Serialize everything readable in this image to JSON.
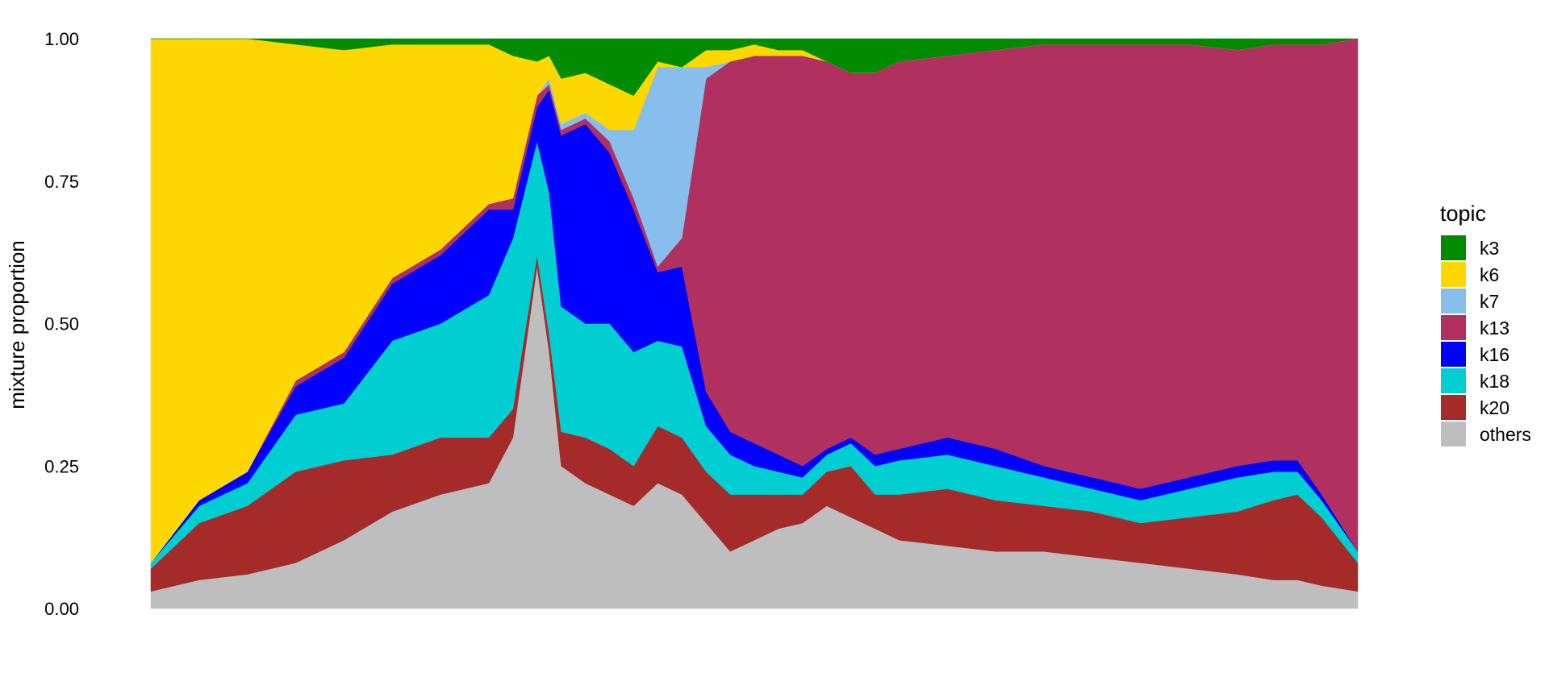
{
  "chart_data": {
    "type": "area",
    "subtype": "stacked-structure-plot",
    "title": "",
    "xlabel": "",
    "ylabel": "mixture proportion",
    "ylim": [
      0,
      1
    ],
    "y_ticks": [
      "0.00",
      "0.25",
      "0.50",
      "0.75",
      "1.00"
    ],
    "x_ticks": [],
    "grid": false,
    "legend_position": "right",
    "legend_title": "topic",
    "x_is_sample_index": true,
    "x": [
      0.0,
      0.04,
      0.08,
      0.12,
      0.16,
      0.2,
      0.24,
      0.28,
      0.3,
      0.32,
      0.33,
      0.34,
      0.36,
      0.38,
      0.4,
      0.42,
      0.44,
      0.46,
      0.48,
      0.5,
      0.52,
      0.54,
      0.56,
      0.58,
      0.6,
      0.62,
      0.66,
      0.7,
      0.74,
      0.78,
      0.82,
      0.86,
      0.9,
      0.93,
      0.95,
      0.97,
      1.0
    ],
    "series": [
      {
        "name": "others",
        "color": "#BEBEBE",
        "values": [
          0.03,
          0.05,
          0.06,
          0.08,
          0.12,
          0.17,
          0.2,
          0.22,
          0.3,
          0.6,
          0.45,
          0.25,
          0.22,
          0.2,
          0.18,
          0.22,
          0.2,
          0.15,
          0.1,
          0.12,
          0.14,
          0.15,
          0.18,
          0.16,
          0.14,
          0.12,
          0.11,
          0.1,
          0.1,
          0.09,
          0.08,
          0.07,
          0.06,
          0.05,
          0.05,
          0.04,
          0.03
        ]
      },
      {
        "name": "k20",
        "color": "#A52A2A",
        "values": [
          0.04,
          0.1,
          0.12,
          0.16,
          0.14,
          0.1,
          0.1,
          0.08,
          0.05,
          0.02,
          0.03,
          0.06,
          0.08,
          0.08,
          0.07,
          0.1,
          0.1,
          0.09,
          0.1,
          0.08,
          0.06,
          0.05,
          0.06,
          0.09,
          0.06,
          0.08,
          0.1,
          0.09,
          0.08,
          0.08,
          0.07,
          0.09,
          0.11,
          0.14,
          0.15,
          0.12,
          0.05
        ]
      },
      {
        "name": "k18",
        "color": "#00CED1",
        "values": [
          0.01,
          0.03,
          0.04,
          0.1,
          0.1,
          0.2,
          0.2,
          0.25,
          0.3,
          0.2,
          0.25,
          0.22,
          0.2,
          0.22,
          0.2,
          0.15,
          0.16,
          0.08,
          0.07,
          0.05,
          0.04,
          0.03,
          0.03,
          0.04,
          0.05,
          0.06,
          0.06,
          0.06,
          0.05,
          0.04,
          0.04,
          0.05,
          0.06,
          0.05,
          0.04,
          0.03,
          0.02
        ]
      },
      {
        "name": "k16",
        "color": "#0000FF",
        "values": [
          0.0,
          0.01,
          0.02,
          0.05,
          0.08,
          0.1,
          0.12,
          0.15,
          0.05,
          0.06,
          0.18,
          0.3,
          0.35,
          0.3,
          0.25,
          0.12,
          0.14,
          0.06,
          0.04,
          0.04,
          0.03,
          0.02,
          0.01,
          0.01,
          0.02,
          0.02,
          0.03,
          0.03,
          0.02,
          0.02,
          0.02,
          0.02,
          0.02,
          0.02,
          0.02,
          0.01,
          0.0
        ]
      },
      {
        "name": "k13",
        "color": "#B03060",
        "values": [
          0.0,
          0.0,
          0.0,
          0.01,
          0.01,
          0.01,
          0.01,
          0.01,
          0.02,
          0.02,
          0.01,
          0.01,
          0.01,
          0.02,
          0.02,
          0.01,
          0.05,
          0.55,
          0.65,
          0.68,
          0.7,
          0.72,
          0.68,
          0.64,
          0.67,
          0.68,
          0.67,
          0.7,
          0.74,
          0.76,
          0.78,
          0.76,
          0.73,
          0.73,
          0.73,
          0.79,
          0.9
        ]
      },
      {
        "name": "k7",
        "color": "#87BEEB",
        "values": [
          0.0,
          0.0,
          0.0,
          0.0,
          0.0,
          0.0,
          0.0,
          0.0,
          0.0,
          0.0,
          0.01,
          0.01,
          0.01,
          0.02,
          0.12,
          0.35,
          0.3,
          0.02,
          0.0,
          0.0,
          0.0,
          0.0,
          0.0,
          0.0,
          0.0,
          0.0,
          0.0,
          0.0,
          0.0,
          0.0,
          0.0,
          0.0,
          0.0,
          0.0,
          0.0,
          0.0,
          0.0
        ]
      },
      {
        "name": "k6",
        "color": "#FFD700",
        "values": [
          0.92,
          0.81,
          0.76,
          0.59,
          0.53,
          0.41,
          0.36,
          0.28,
          0.25,
          0.06,
          0.04,
          0.08,
          0.07,
          0.08,
          0.06,
          0.01,
          0.0,
          0.03,
          0.02,
          0.02,
          0.01,
          0.01,
          0.0,
          0.0,
          0.0,
          0.0,
          0.0,
          0.0,
          0.0,
          0.0,
          0.0,
          0.0,
          0.0,
          0.0,
          0.0,
          0.0,
          0.0
        ]
      },
      {
        "name": "k3",
        "color": "#008B00",
        "values": [
          0.0,
          0.0,
          0.0,
          0.01,
          0.02,
          0.01,
          0.01,
          0.01,
          0.03,
          0.04,
          0.03,
          0.07,
          0.06,
          0.08,
          0.1,
          0.04,
          0.05,
          0.02,
          0.02,
          0.01,
          0.02,
          0.02,
          0.04,
          0.06,
          0.06,
          0.04,
          0.03,
          0.02,
          0.01,
          0.01,
          0.01,
          0.01,
          0.02,
          0.01,
          0.01,
          0.01,
          0.0
        ]
      }
    ],
    "legend_order": [
      "k3",
      "k6",
      "k7",
      "k13",
      "k16",
      "k18",
      "k20",
      "others"
    ]
  }
}
